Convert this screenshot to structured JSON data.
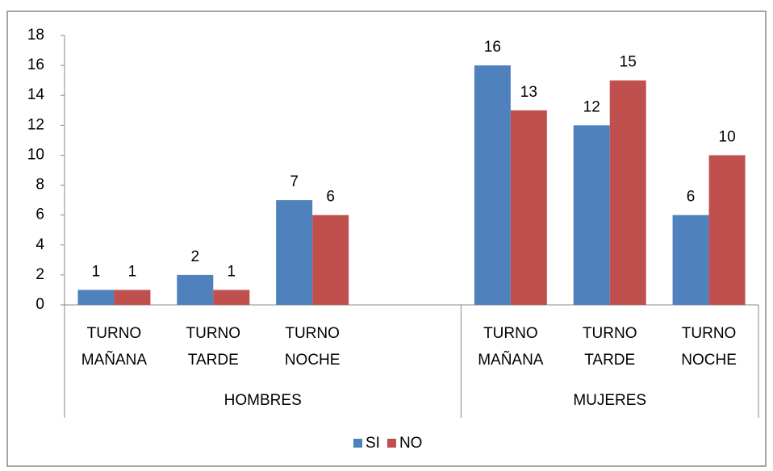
{
  "chart_data": {
    "type": "bar",
    "categories": [
      "TURNO MAÑANA",
      "TURNO TARDE",
      "TURNO NOCHE",
      null,
      "TURNO MAÑANA",
      "TURNO TARDE",
      "TURNO NOCHE"
    ],
    "groups": [
      "HOMBRES",
      "MUJERES"
    ],
    "series": [
      {
        "name": "SI",
        "color": "#4f81bd",
        "values": [
          1,
          2,
          7,
          null,
          16,
          12,
          6
        ]
      },
      {
        "name": "NO",
        "color": "#c0504d",
        "values": [
          1,
          1,
          6,
          null,
          13,
          15,
          10
        ]
      }
    ],
    "ylim": [
      0,
      18
    ],
    "yticks": [
      0,
      2,
      4,
      6,
      8,
      10,
      12,
      14,
      16,
      18
    ],
    "grid": false,
    "legend": "bottom"
  }
}
